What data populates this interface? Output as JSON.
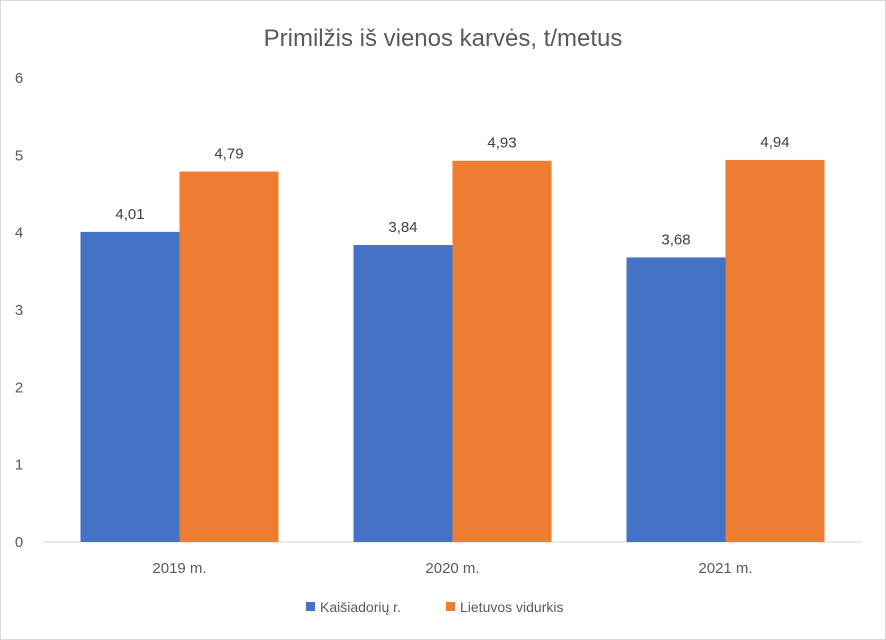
{
  "chart_data": {
    "type": "bar",
    "title": "Primilžis iš vienos karvės, t/metus",
    "categories": [
      "2019 m.",
      "2020 m.",
      "2021 m."
    ],
    "series": [
      {
        "name": "Kaišiadorių r.",
        "values": [
          4.01,
          3.84,
          3.68
        ],
        "labels": [
          "4,01",
          "3,84",
          "3,68"
        ],
        "color": "#4472c4"
      },
      {
        "name": "Lietuvos vidurkis",
        "values": [
          4.79,
          4.93,
          4.94
        ],
        "labels": [
          "4,79",
          "4,93",
          "4,94"
        ],
        "color": "#ed7d31"
      }
    ],
    "yticks": [
      "0",
      "1",
      "2",
      "3",
      "4",
      "5",
      "6"
    ],
    "ylim": [
      0,
      6
    ],
    "grid": false,
    "legend": "bottom"
  }
}
